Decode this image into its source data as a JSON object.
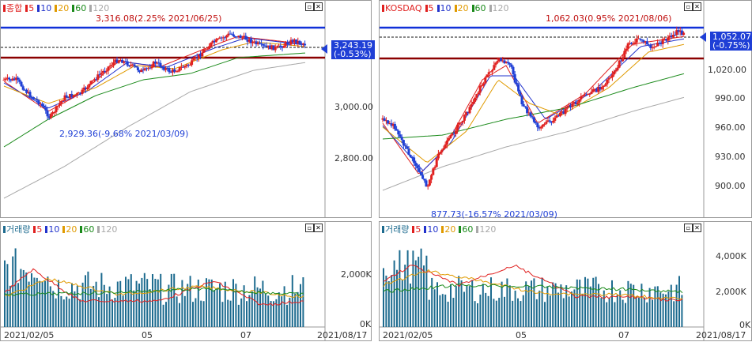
{
  "left": {
    "price": {
      "legend": {
        "name": "종합",
        "ma": [
          "5",
          "10",
          "20",
          "60",
          "120"
        ]
      },
      "ma_colors": [
        "#e0201f",
        "#2233cc",
        "#e09a00",
        "#1a8a1a",
        "#a8a8a8"
      ],
      "y_ticks": [
        "3,000.00",
        "2,800.00"
      ],
      "current": "3,243.19",
      "change": "(-0.53%)",
      "high_annot": "3,316.08(2.25% 2021/06/25)",
      "low_annot": "2,929.36(-9.68% 2021/03/09)"
    },
    "volume": {
      "legend": {
        "name": "거래량",
        "ma": [
          "5",
          "10",
          "20",
          "60",
          "120"
        ]
      },
      "y_ticks": [
        "2,000K",
        "0K"
      ],
      "x_ticks": [
        "2021/02/05",
        "05",
        "07",
        "2021/08/17"
      ]
    }
  },
  "right": {
    "price": {
      "legend": {
        "name": "KOSDAQ",
        "ma": [
          "5",
          "10",
          "20",
          "60",
          "120"
        ]
      },
      "y_ticks": [
        "1,020.00",
        "990.00",
        "960.00",
        "930.00",
        "900.00"
      ],
      "current": "1,052.07",
      "change": "(-0.75%)",
      "high_annot": "1,062.03(0.95% 2021/08/06)",
      "low_annot": "877.73(-16.57% 2021/03/09)"
    },
    "volume": {
      "legend": {
        "name": "거래량",
        "ma": [
          "5",
          "10",
          "20",
          "60",
          "120"
        ]
      },
      "y_ticks": [
        "4,000K",
        "2,000K",
        "0K"
      ],
      "x_ticks": [
        "2021/02/05",
        "05",
        "07",
        "2021/08/17"
      ]
    }
  },
  "colors": {
    "up": "#e0201f",
    "down": "#1f3fd6",
    "resistance": "#1030d8",
    "support": "#8b0000",
    "volume": "#1d6b8f"
  }
}
